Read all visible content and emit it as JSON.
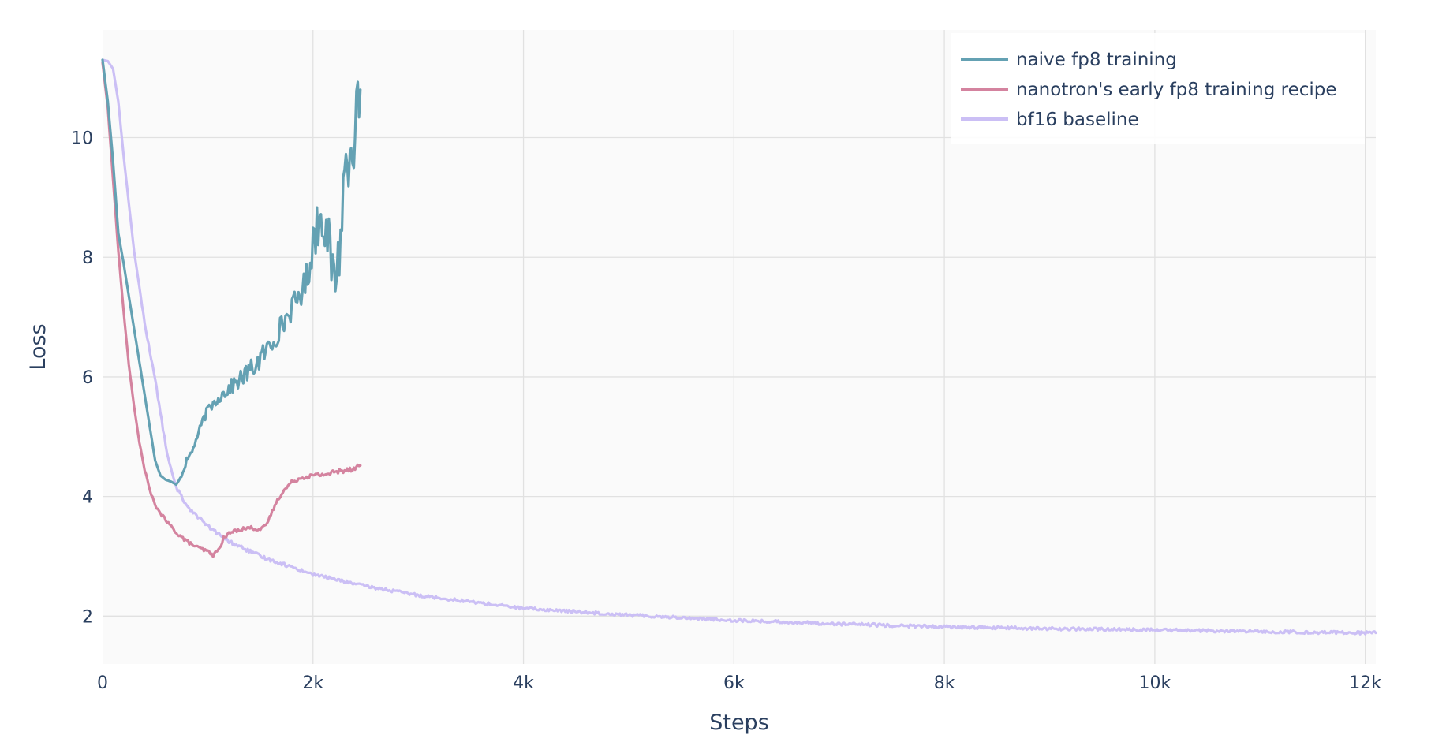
{
  "chart_data": {
    "type": "line",
    "title": "",
    "xlabel": "Steps",
    "ylabel": "Loss",
    "xlim": [
      0,
      12100
    ],
    "ylim": [
      1.2,
      11.8
    ],
    "xticks": [
      0,
      2000,
      4000,
      6000,
      8000,
      10000,
      12000
    ],
    "xtick_labels": [
      "0",
      "2k",
      "4k",
      "6k",
      "8k",
      "10k",
      "12k"
    ],
    "yticks": [
      2,
      4,
      6,
      8,
      10
    ],
    "ytick_labels": [
      "2",
      "4",
      "6",
      "8",
      "10"
    ],
    "grid": true,
    "legend_position": "top-right",
    "series": [
      {
        "name": "naive fp8 training",
        "color": "#64a1b3",
        "x": [
          0,
          50,
          100,
          150,
          200,
          300,
          400,
          500,
          550,
          600,
          650,
          700,
          750,
          800,
          850,
          900,
          950,
          1000,
          1100,
          1200,
          1300,
          1400,
          1500,
          1600,
          1700,
          1800,
          1900,
          1950,
          2000,
          2050,
          2100,
          2150,
          2200,
          2250,
          2300,
          2350,
          2400,
          2450
        ],
        "y": [
          11.3,
          10.6,
          9.6,
          8.4,
          7.9,
          6.8,
          5.7,
          4.6,
          4.35,
          4.28,
          4.25,
          4.2,
          4.35,
          4.6,
          4.75,
          5.0,
          5.25,
          5.45,
          5.65,
          5.8,
          5.95,
          6.1,
          6.3,
          6.55,
          6.85,
          7.15,
          7.45,
          7.7,
          8.3,
          8.6,
          8.75,
          8.15,
          7.6,
          8.1,
          9.4,
          9.9,
          10.1,
          10.8
        ],
        "noise": [
          0,
          0,
          0,
          0,
          0,
          0,
          0,
          0,
          0,
          0,
          0,
          0,
          0.03,
          0.05,
          0.05,
          0.06,
          0.07,
          0.08,
          0.1,
          0.12,
          0.15,
          0.17,
          0.19,
          0.2,
          0.2,
          0.2,
          0.22,
          0.3,
          0.4,
          0.45,
          0.45,
          0.5,
          0.45,
          0.5,
          0.55,
          0.6,
          0.6,
          0.4
        ]
      },
      {
        "name": "nanotron's early fp8 training recipe",
        "color": "#d4839f",
        "x": [
          0,
          50,
          100,
          150,
          200,
          250,
          300,
          350,
          400,
          450,
          500,
          600,
          700,
          800,
          900,
          1000,
          1050,
          1100,
          1150,
          1200,
          1250,
          1300,
          1400,
          1500,
          1550,
          1600,
          1650,
          1700,
          1800,
          1900,
          2000,
          2100,
          2200,
          2300,
          2400,
          2450
        ],
        "y": [
          11.25,
          10.5,
          9.3,
          8.1,
          7.1,
          6.2,
          5.5,
          4.9,
          4.45,
          4.1,
          3.85,
          3.6,
          3.4,
          3.25,
          3.15,
          3.08,
          3.02,
          3.1,
          3.3,
          3.38,
          3.42,
          3.45,
          3.48,
          3.45,
          3.5,
          3.7,
          3.9,
          4.05,
          4.25,
          4.32,
          4.35,
          4.37,
          4.4,
          4.45,
          4.48,
          4.52
        ],
        "noise": [
          0,
          0,
          0,
          0,
          0,
          0,
          0,
          0,
          0.02,
          0.02,
          0.02,
          0.03,
          0.03,
          0.03,
          0.03,
          0.03,
          0.03,
          0.03,
          0.03,
          0.03,
          0.03,
          0.03,
          0.03,
          0.03,
          0.03,
          0.03,
          0.03,
          0.03,
          0.03,
          0.03,
          0.04,
          0.04,
          0.05,
          0.05,
          0.05,
          0.05
        ]
      },
      {
        "name": "bf16 baseline",
        "color": "#cbbff5",
        "x": [
          0,
          50,
          100,
          150,
          200,
          250,
          300,
          400,
          500,
          550,
          600,
          650,
          700,
          800,
          1000,
          1200,
          1500,
          2000,
          2500,
          3000,
          3500,
          4000,
          5000,
          6000,
          7000,
          8000,
          9000,
          10000,
          11000,
          12000,
          12100
        ],
        "y": [
          11.3,
          11.28,
          11.15,
          10.6,
          9.7,
          8.9,
          8.1,
          6.9,
          5.95,
          5.4,
          4.85,
          4.45,
          4.15,
          3.85,
          3.5,
          3.25,
          3.0,
          2.7,
          2.5,
          2.35,
          2.24,
          2.13,
          2.02,
          1.93,
          1.87,
          1.82,
          1.79,
          1.77,
          1.74,
          1.72,
          1.72
        ],
        "noise": [
          0,
          0,
          0,
          0,
          0,
          0,
          0,
          0.02,
          0.03,
          0.03,
          0.03,
          0.03,
          0.03,
          0.03,
          0.03,
          0.03,
          0.03,
          0.025,
          0.025,
          0.025,
          0.025,
          0.025,
          0.025,
          0.025,
          0.025,
          0.025,
          0.025,
          0.025,
          0.025,
          0.025,
          0.025
        ]
      }
    ]
  }
}
